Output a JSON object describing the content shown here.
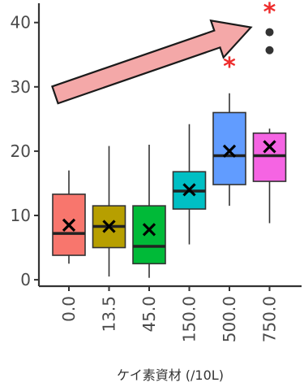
{
  "chart_data": {
    "type": "box",
    "xlabel": "ケイ素資材 (/10L)",
    "ylabel": "",
    "ylim": [
      -1,
      43
    ],
    "yticks": [
      0,
      10,
      20,
      30,
      40
    ],
    "grid": false,
    "categories": [
      "0.0",
      "13.5",
      "45.0",
      "150.0",
      "500.0",
      "750.0"
    ],
    "boxes": [
      {
        "category": "0.0",
        "color": "#f8766d",
        "whisker_low": 2.5,
        "q1": 3.8,
        "median": 7.2,
        "q3": 13.3,
        "whisker_high": 17.0,
        "mean": 8.5
      },
      {
        "category": "13.5",
        "color": "#b79f00",
        "whisker_low": 0.5,
        "q1": 5.0,
        "median": 8.3,
        "q3": 11.5,
        "whisker_high": 20.8,
        "mean": 8.3
      },
      {
        "category": "45.0",
        "color": "#00ba38",
        "whisker_low": 0.3,
        "q1": 2.5,
        "median": 5.2,
        "q3": 11.5,
        "whisker_high": 21.0,
        "mean": 7.8
      },
      {
        "category": "150.0",
        "color": "#00bfc4",
        "whisker_low": 5.5,
        "q1": 11.0,
        "median": 13.8,
        "q3": 16.8,
        "whisker_high": 24.2,
        "mean": 14.0
      },
      {
        "category": "500.0",
        "color": "#619cff",
        "whisker_low": 11.5,
        "q1": 14.8,
        "median": 19.3,
        "q3": 26.0,
        "whisker_high": 29.0,
        "mean": 20.0
      },
      {
        "category": "750.0",
        "color": "#f564e3",
        "whisker_low": 8.8,
        "q1": 15.3,
        "median": 19.3,
        "q3": 22.8,
        "whisker_high": 23.5,
        "mean": 20.7
      }
    ],
    "outliers": [
      {
        "category": "750.0",
        "value": 38.5
      },
      {
        "category": "750.0",
        "value": 35.7
      }
    ],
    "annotations": [
      {
        "text": "*",
        "category": "500.0",
        "value": 33.5,
        "color": "#ee2c2c"
      },
      {
        "text": "*",
        "category": "750.0",
        "value": 42.0,
        "color": "#ee2c2c"
      },
      {
        "type": "arrow",
        "from": {
          "category": "0.0",
          "value": 29.0
        },
        "to": {
          "category": "750.0",
          "value": 39.5
        },
        "fill": "#f4a8a8",
        "stroke": "#1a1a1a"
      }
    ],
    "mean_marker": "x"
  }
}
